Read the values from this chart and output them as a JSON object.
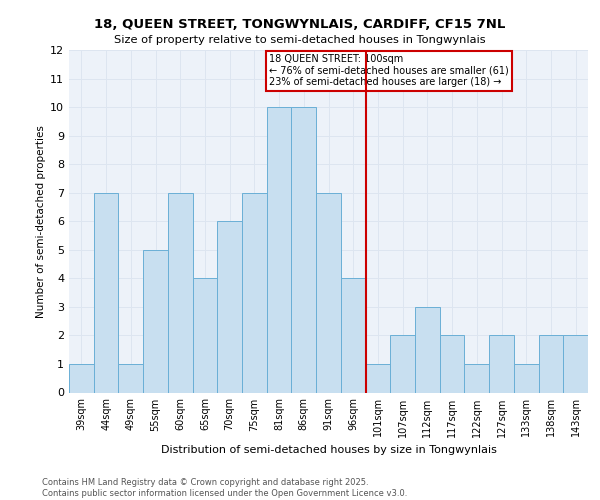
{
  "title1": "18, QUEEN STREET, TONGWYNLAIS, CARDIFF, CF15 7NL",
  "title2": "Size of property relative to semi-detached houses in Tongwynlais",
  "xlabel": "Distribution of semi-detached houses by size in Tongwynlais",
  "ylabel": "Number of semi-detached properties",
  "categories": [
    "39sqm",
    "44sqm",
    "49sqm",
    "55sqm",
    "60sqm",
    "65sqm",
    "70sqm",
    "75sqm",
    "81sqm",
    "86sqm",
    "91sqm",
    "96sqm",
    "101sqm",
    "107sqm",
    "112sqm",
    "117sqm",
    "122sqm",
    "127sqm",
    "133sqm",
    "138sqm",
    "143sqm"
  ],
  "values": [
    1,
    7,
    1,
    5,
    7,
    4,
    6,
    7,
    10,
    10,
    7,
    4,
    1,
    2,
    3,
    2,
    1,
    2,
    1,
    2,
    2
  ],
  "bar_color": "#c8dff0",
  "bar_edge_color": "#6aafd6",
  "annotation_text": "18 QUEEN STREET: 100sqm\n← 76% of semi-detached houses are smaller (61)\n23% of semi-detached houses are larger (18) →",
  "annotation_box_color": "#ffffff",
  "annotation_box_edge": "#cc0000",
  "red_line_color": "#cc0000",
  "grid_color": "#dde5f0",
  "background_color": "#edf2f9",
  "ylim": [
    0,
    12
  ],
  "yticks": [
    0,
    1,
    2,
    3,
    4,
    5,
    6,
    7,
    8,
    9,
    10,
    11,
    12
  ],
  "footer1": "Contains HM Land Registry data © Crown copyright and database right 2025.",
  "footer2": "Contains public sector information licensed under the Open Government Licence v3.0."
}
